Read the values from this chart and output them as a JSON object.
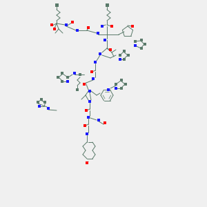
{
  "bg_color": "#f0f0f0",
  "bond_color": "#5a7a6a",
  "N_color": "#1a1aff",
  "O_color": "#ff0000",
  "C_color": "#5a7a6a",
  "NH2_color": "#5a7a6a",
  "figsize": [
    3.0,
    3.0
  ],
  "dpi": 100
}
